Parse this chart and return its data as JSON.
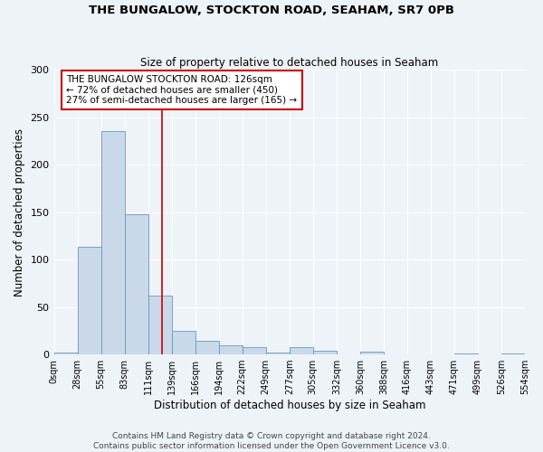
{
  "title1": "THE BUNGALOW, STOCKTON ROAD, SEAHAM, SR7 0PB",
  "title2": "Size of property relative to detached houses in Seaham",
  "xlabel": "Distribution of detached houses by size in Seaham",
  "ylabel": "Number of detached properties",
  "bin_edges": [
    0,
    27.5,
    55,
    82.5,
    110,
    137.5,
    165,
    192.5,
    220,
    247.5,
    275,
    302.5,
    330,
    357.5,
    385,
    412.5,
    440,
    467.5,
    495,
    522.5,
    550
  ],
  "bin_heights": [
    2,
    113,
    235,
    148,
    62,
    25,
    14,
    10,
    8,
    2,
    8,
    4,
    0,
    3,
    0,
    0,
    0,
    1,
    0,
    1
  ],
  "xtick_labels": [
    "0sqm",
    "28sqm",
    "55sqm",
    "83sqm",
    "111sqm",
    "139sqm",
    "166sqm",
    "194sqm",
    "222sqm",
    "249sqm",
    "277sqm",
    "305sqm",
    "332sqm",
    "360sqm",
    "388sqm",
    "416sqm",
    "443sqm",
    "471sqm",
    "499sqm",
    "526sqm",
    "554sqm"
  ],
  "bar_color": "#c9d9ea",
  "bar_edge_color": "#6699bb",
  "red_line_x": 126,
  "ylim": [
    0,
    300
  ],
  "yticks": [
    0,
    50,
    100,
    150,
    200,
    250,
    300
  ],
  "annotation_text": "THE BUNGALOW STOCKTON ROAD: 126sqm\n← 72% of detached houses are smaller (450)\n27% of semi-detached houses are larger (165) →",
  "annotation_box_color": "#ffffff",
  "annotation_box_edge": "#cc0000",
  "footer_text": "Contains HM Land Registry data © Crown copyright and database right 2024.\nContains public sector information licensed under the Open Government Licence v3.0.",
  "bg_color": "#eef3f8",
  "grid_color": "#ffffff"
}
